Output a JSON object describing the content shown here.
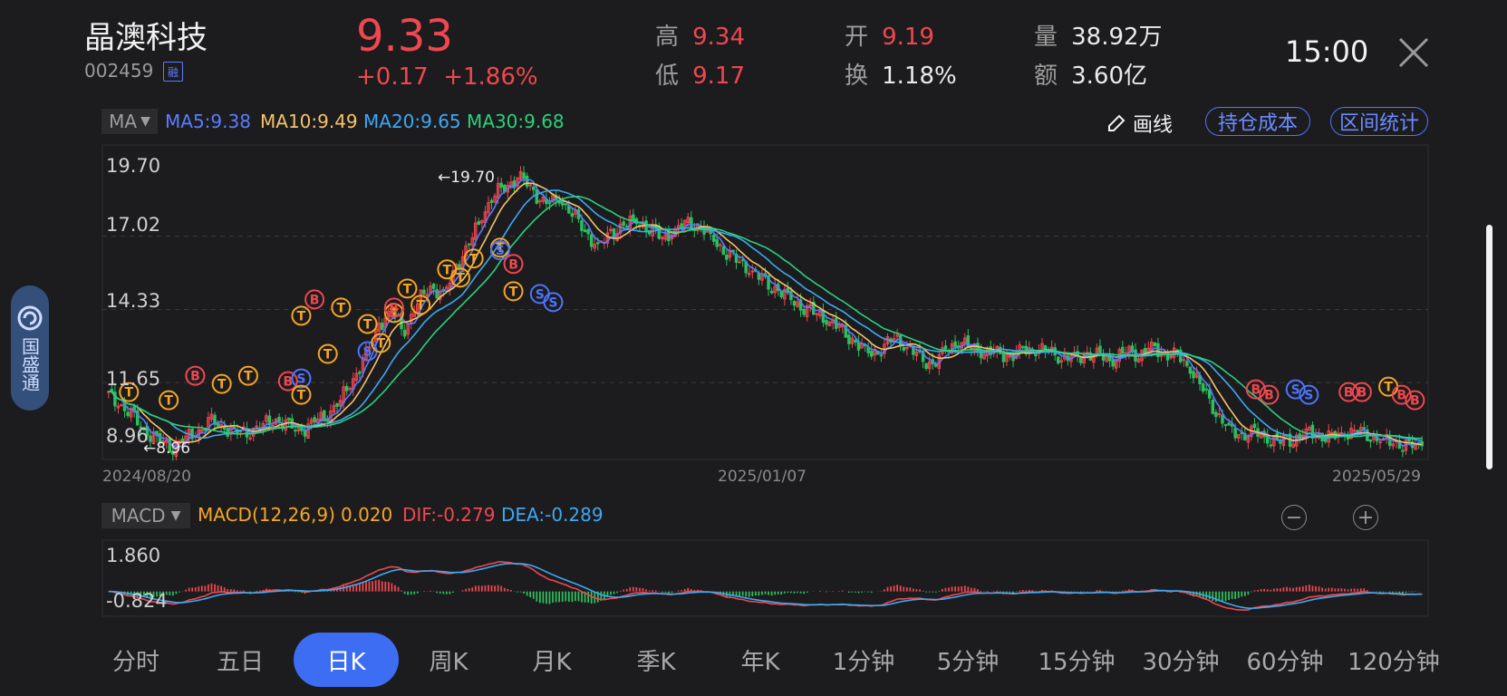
{
  "header": {
    "name": "晶澳科技",
    "code": "002459",
    "rong_badge": "融",
    "price": "9.33",
    "change": "+0.17",
    "change_pct": "+1.86%",
    "quote": [
      {
        "label": "高",
        "value": "9.34",
        "color": "red"
      },
      {
        "label": "低",
        "value": "9.17",
        "color": "red"
      },
      {
        "label": "开",
        "value": "9.19",
        "color": "red"
      },
      {
        "label": "换",
        "value": "1.18%",
        "color": "white"
      },
      {
        "label": "量",
        "value": "38.92万",
        "color": "white"
      },
      {
        "label": "额",
        "value": "3.60亿",
        "color": "white"
      }
    ],
    "time": "15:00",
    "close_icon": "close-icon"
  },
  "toolbar": {
    "ma_select": "MA",
    "ma_legend": [
      {
        "text": "MA5:9.38",
        "color": "#5b7cff"
      },
      {
        "text": "MA10:9.49",
        "color": "#f5c26b"
      },
      {
        "text": "MA20:9.65",
        "color": "#3ea8f2"
      },
      {
        "text": "MA30:9.68",
        "color": "#2bd07c"
      }
    ],
    "draw_label": "画线",
    "draw_icon": "pencil-icon",
    "cost_button": "持仓成本",
    "stats_button": "区间统计"
  },
  "side_tab": {
    "label": "国盛通",
    "icon": "logo-icon"
  },
  "chart_data": [
    {
      "type": "candlestick",
      "y_ticks": [
        "19.70",
        "17.02",
        "14.33",
        "11.65",
        "8.96"
      ],
      "ylim": [
        8.96,
        19.7
      ],
      "x_labels": [
        "2024/08/20",
        "2025/01/07",
        "2025/05/29"
      ],
      "max_annotation": "←19.70",
      "min_annotation": "←8.96",
      "grid": true,
      "close_series": [
        11.2,
        10.8,
        10.3,
        9.8,
        9.5,
        9.3,
        9.6,
        9.9,
        10.2,
        10.0,
        9.8,
        9.9,
        10.1,
        10.3,
        10.0,
        9.9,
        10.2,
        10.5,
        11.0,
        11.8,
        12.6,
        13.8,
        14.2,
        13.6,
        14.6,
        15.2,
        14.8,
        15.9,
        16.7,
        17.8,
        18.6,
        18.9,
        19.2,
        18.6,
        18.2,
        18.4,
        17.9,
        17.2,
        16.6,
        17.1,
        17.4,
        17.6,
        17.3,
        17.0,
        17.2,
        17.5,
        17.3,
        16.9,
        16.4,
        16.1,
        15.7,
        15.3,
        15.0,
        14.7,
        14.4,
        14.2,
        13.9,
        13.5,
        13.1,
        12.7,
        12.9,
        13.3,
        13.0,
        12.5,
        12.3,
        12.8,
        13.2,
        12.9,
        12.8,
        12.7,
        12.6,
        12.8,
        12.9,
        12.8,
        12.6,
        12.5,
        12.7,
        12.6,
        12.5,
        12.8,
        12.7,
        12.9,
        12.7,
        12.6,
        12.2,
        11.4,
        10.6,
        9.9,
        9.7,
        9.8,
        9.6,
        9.5,
        9.6,
        9.8,
        9.7,
        9.6,
        9.8,
        9.9,
        9.7,
        9.5,
        9.4,
        9.3,
        9.33
      ],
      "series": [
        {
          "name": "MA5",
          "color": "#5b7cff"
        },
        {
          "name": "MA10",
          "color": "#f5c26b"
        },
        {
          "name": "MA20",
          "color": "#3ea8f2"
        },
        {
          "name": "MA30",
          "color": "#2bd07c"
        }
      ],
      "trade_markers": [
        {
          "label": "B",
          "x": 0.07,
          "y": 11.9,
          "color": "#f0474f"
        },
        {
          "label": "B",
          "x": 0.14,
          "y": 11.7,
          "color": "#f0474f"
        },
        {
          "label": "S",
          "x": 0.15,
          "y": 11.8,
          "color": "#4d74ff"
        },
        {
          "label": "T",
          "x": 0.02,
          "y": 11.3,
          "color": "#f5a623"
        },
        {
          "label": "T",
          "x": 0.05,
          "y": 11.0,
          "color": "#f5a623"
        },
        {
          "label": "T",
          "x": 0.09,
          "y": 11.6,
          "color": "#f5a623"
        },
        {
          "label": "T",
          "x": 0.11,
          "y": 11.9,
          "color": "#f5a623"
        },
        {
          "label": "T",
          "x": 0.15,
          "y": 11.2,
          "color": "#f5a623"
        },
        {
          "label": "T",
          "x": 0.17,
          "y": 12.7,
          "color": "#f5a623"
        },
        {
          "label": "T",
          "x": 0.15,
          "y": 14.1,
          "color": "#f5a623"
        },
        {
          "label": "B",
          "x": 0.16,
          "y": 14.7,
          "color": "#f0474f"
        },
        {
          "label": "T",
          "x": 0.18,
          "y": 14.4,
          "color": "#f5a623"
        },
        {
          "label": "T",
          "x": 0.2,
          "y": 13.8,
          "color": "#f5a623"
        },
        {
          "label": "S",
          "x": 0.2,
          "y": 12.8,
          "color": "#4d74ff"
        },
        {
          "label": "T",
          "x": 0.21,
          "y": 13.1,
          "color": "#f5a623"
        },
        {
          "label": "T",
          "x": 0.22,
          "y": 14.2,
          "color": "#f5a623"
        },
        {
          "label": "B",
          "x": 0.22,
          "y": 14.4,
          "color": "#f0474f"
        },
        {
          "label": "T",
          "x": 0.23,
          "y": 15.1,
          "color": "#f5a623"
        },
        {
          "label": "T",
          "x": 0.24,
          "y": 14.5,
          "color": "#f5a623"
        },
        {
          "label": "T",
          "x": 0.26,
          "y": 15.8,
          "color": "#f5a623"
        },
        {
          "label": "T",
          "x": 0.27,
          "y": 15.5,
          "color": "#f5a623"
        },
        {
          "label": "T",
          "x": 0.28,
          "y": 16.2,
          "color": "#f5a623"
        },
        {
          "label": "T",
          "x": 0.3,
          "y": 16.6,
          "color": "#f5a623"
        },
        {
          "label": "S",
          "x": 0.3,
          "y": 16.5,
          "color": "#4d74ff"
        },
        {
          "label": "T",
          "x": 0.31,
          "y": 15.0,
          "color": "#f5a623"
        },
        {
          "label": "B",
          "x": 0.31,
          "y": 16.0,
          "color": "#f0474f"
        },
        {
          "label": "S",
          "x": 0.33,
          "y": 14.9,
          "color": "#4d74ff"
        },
        {
          "label": "S",
          "x": 0.34,
          "y": 14.6,
          "color": "#4d74ff"
        },
        {
          "label": "B",
          "x": 0.87,
          "y": 11.4,
          "color": "#f0474f"
        },
        {
          "label": "B",
          "x": 0.88,
          "y": 11.2,
          "color": "#f0474f"
        },
        {
          "label": "S",
          "x": 0.9,
          "y": 11.4,
          "color": "#4d74ff"
        },
        {
          "label": "S",
          "x": 0.91,
          "y": 11.2,
          "color": "#4d74ff"
        },
        {
          "label": "B",
          "x": 0.94,
          "y": 11.3,
          "color": "#f0474f"
        },
        {
          "label": "B",
          "x": 0.95,
          "y": 11.3,
          "color": "#f0474f"
        },
        {
          "label": "T",
          "x": 0.97,
          "y": 11.5,
          "color": "#f5a623"
        },
        {
          "label": "B",
          "x": 0.98,
          "y": 11.2,
          "color": "#f0474f"
        },
        {
          "label": "B",
          "x": 0.99,
          "y": 11.0,
          "color": "#f0474f"
        }
      ]
    },
    {
      "type": "macd",
      "y_ticks": [
        "1.860",
        "-0.824"
      ],
      "ylim": [
        -0.824,
        1.86
      ],
      "series": [
        {
          "name": "DIF",
          "color": "#f0474f"
        },
        {
          "name": "DEA",
          "color": "#3ea8f2"
        }
      ]
    }
  ],
  "macd_toolbar": {
    "select": "MACD",
    "legend": [
      {
        "text": "MACD(12,26,9)",
        "color": "#f5a623"
      },
      {
        "text": "0.020",
        "color": "#f5a623"
      },
      {
        "text": "DIF:-0.279",
        "color": "#f0474f"
      },
      {
        "text": "DEA:-0.289",
        "color": "#3ea8f2"
      }
    ],
    "zoom_out": "−",
    "zoom_in": "+"
  },
  "tabs": [
    {
      "label": "分时",
      "active": false
    },
    {
      "label": "五日",
      "active": false
    },
    {
      "label": "日K",
      "active": true
    },
    {
      "label": "周K",
      "active": false
    },
    {
      "label": "月K",
      "active": false
    },
    {
      "label": "季K",
      "active": false
    },
    {
      "label": "年K",
      "active": false
    },
    {
      "label": "1分钟",
      "active": false
    },
    {
      "label": "5分钟",
      "active": false
    },
    {
      "label": "15分钟",
      "active": false
    },
    {
      "label": "30分钟",
      "active": false
    },
    {
      "label": "60分钟",
      "active": false
    },
    {
      "label": "120分钟",
      "active": false
    }
  ]
}
